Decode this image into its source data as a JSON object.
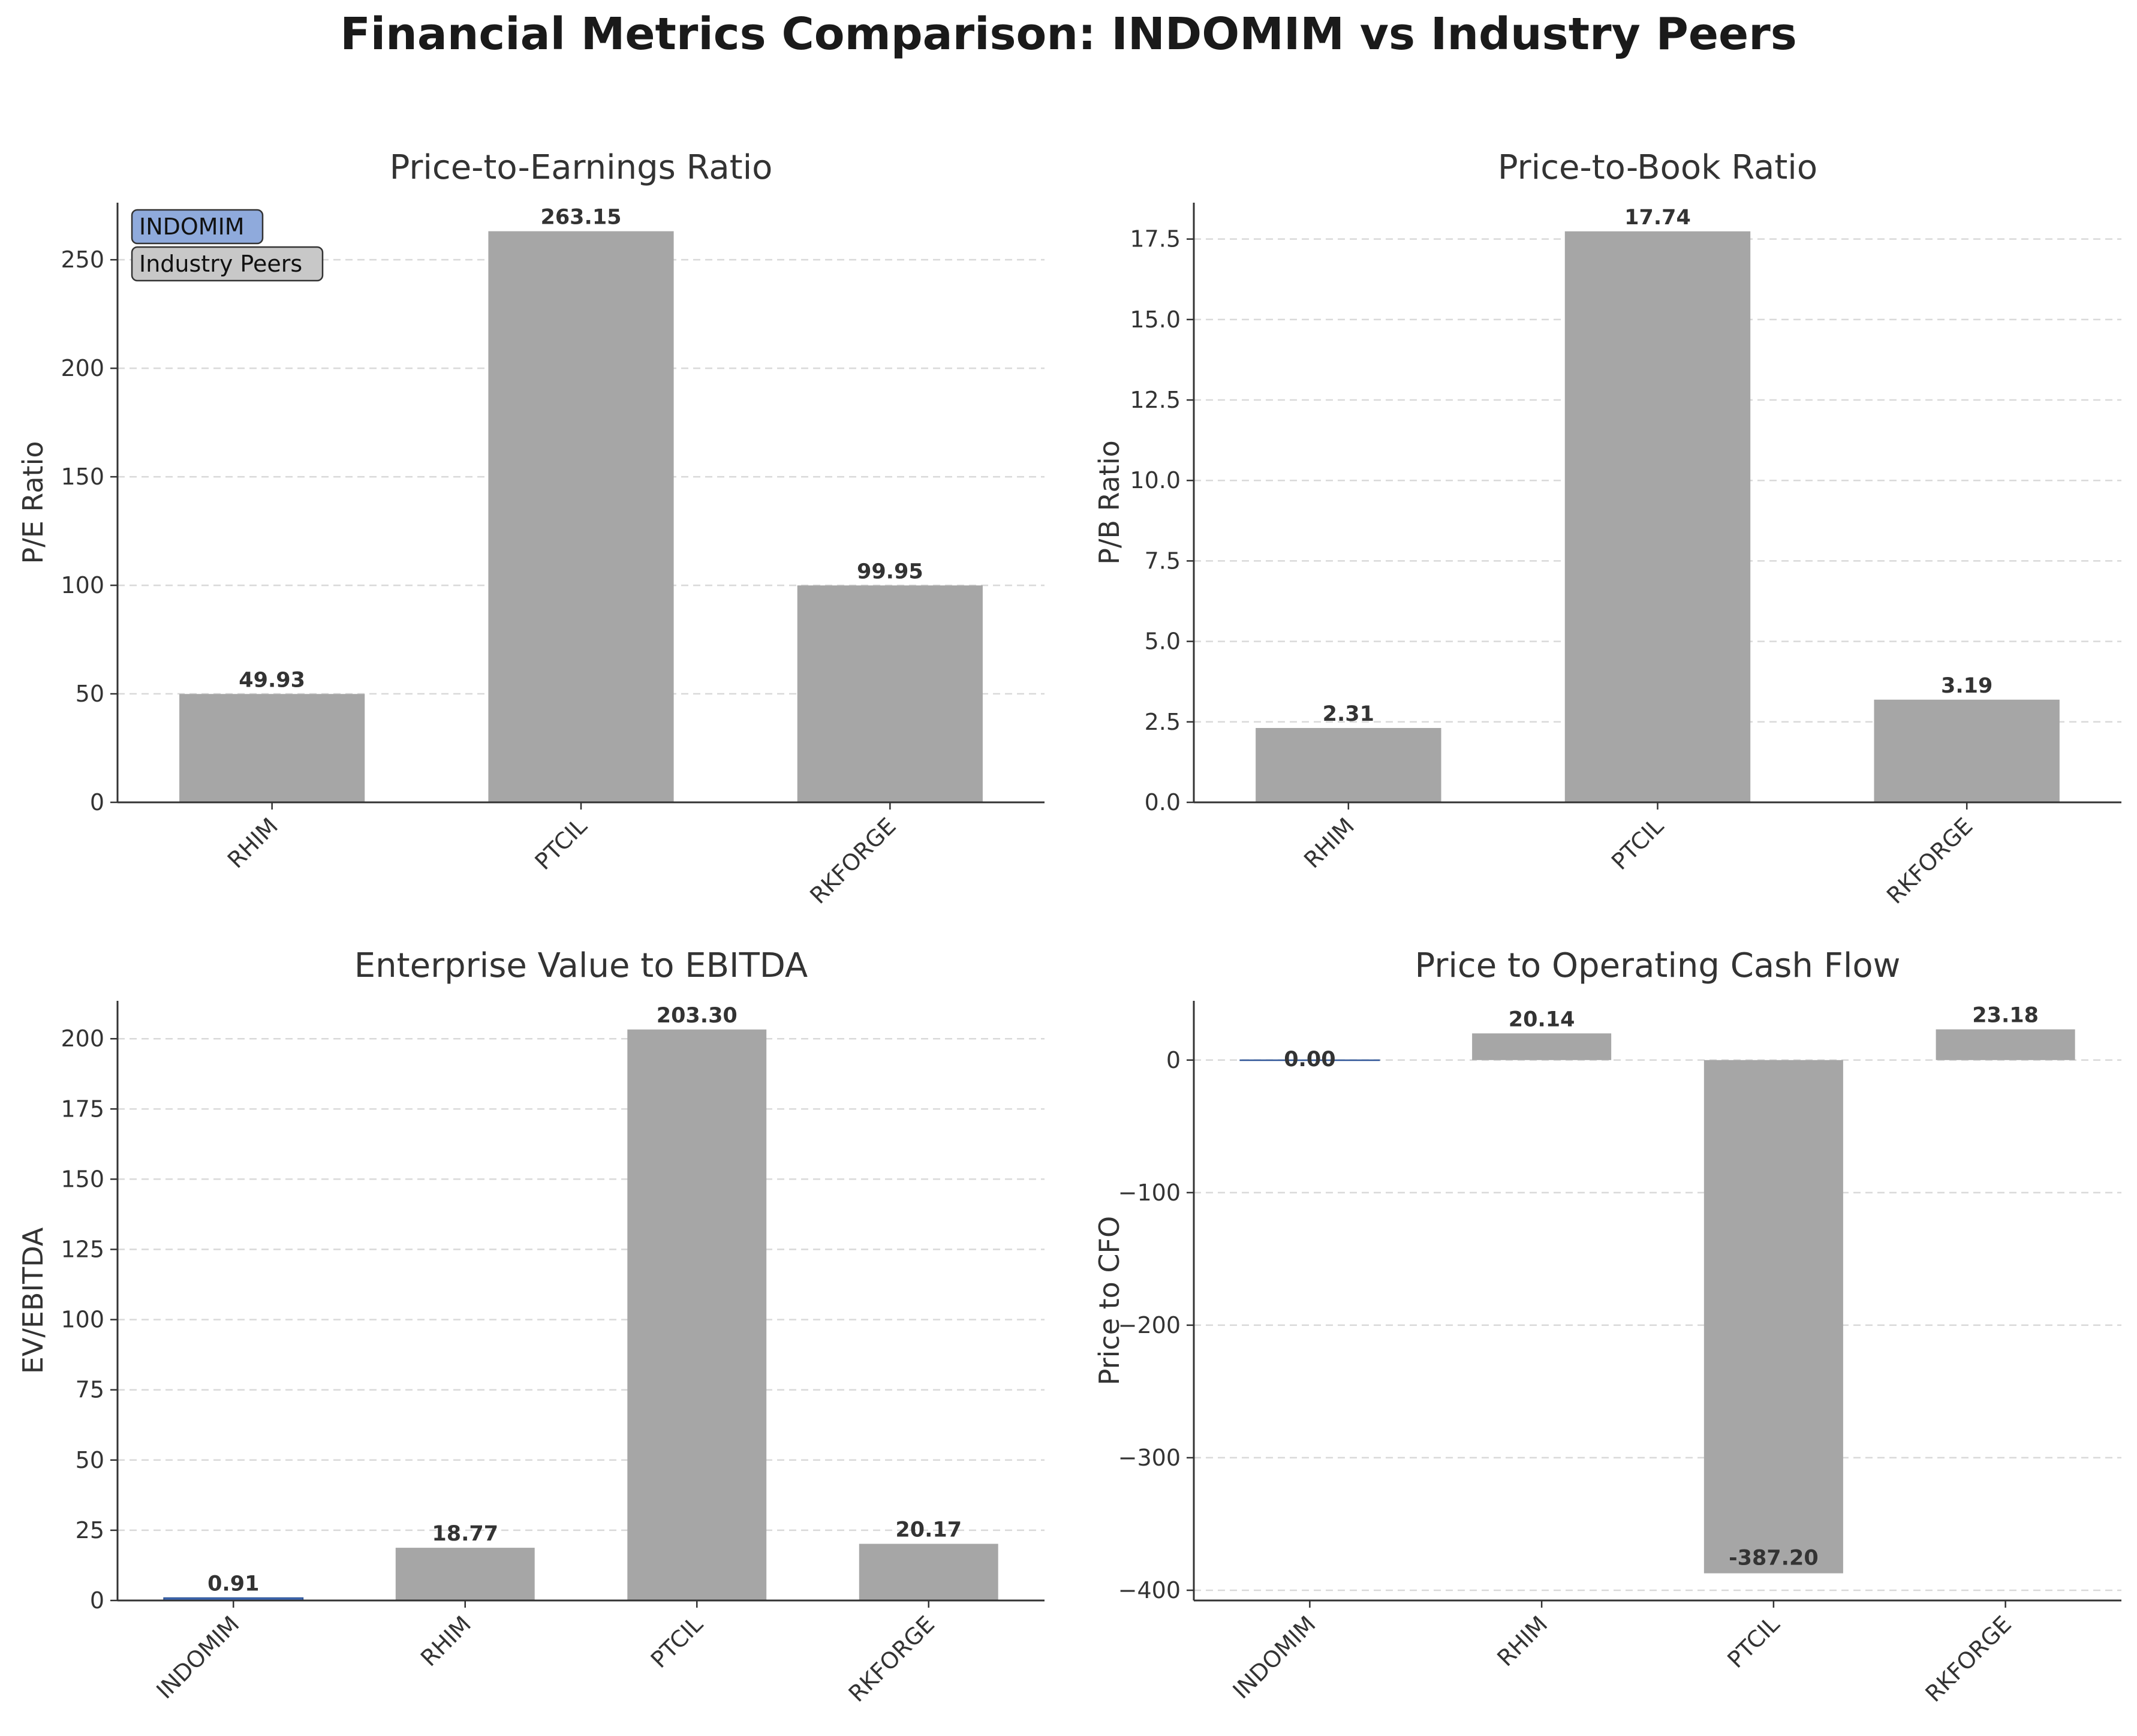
{
  "title": "Financial Metrics Comparison: INDOMIM vs Industry Peers",
  "colors": {
    "indomim": "#4472c4",
    "peers": "#a6a6a6",
    "legend_indomim_bg": "#8faadc",
    "legend_peers_bg": "#c8c8c8",
    "grid": "#d9d9d9",
    "axis": "#333333"
  },
  "legend": {
    "placement": "top-left",
    "entries": [
      "INDOMIM",
      "Industry Peers"
    ]
  },
  "chart_data": [
    {
      "type": "bar",
      "title": "Price-to-Earnings Ratio",
      "ylabel": "P/E Ratio",
      "xlabel": "",
      "categories": [
        "RHIM",
        "PTCIL",
        "RKFORGE"
      ],
      "values": [
        49.93,
        263.15,
        99.95
      ],
      "value_labels": [
        "49.93",
        "263.15",
        "99.95"
      ],
      "group": [
        "peer",
        "peer",
        "peer"
      ],
      "ylim": [
        0,
        276.3
      ],
      "yticks": [
        0,
        50,
        100,
        150,
        200,
        250
      ],
      "ytick_labels": [
        "0",
        "50",
        "100",
        "150",
        "200",
        "250"
      ],
      "grid": "y-dashed",
      "show_legend": true
    },
    {
      "type": "bar",
      "title": "Price-to-Book Ratio",
      "ylabel": "P/B Ratio",
      "xlabel": "",
      "categories": [
        "RHIM",
        "PTCIL",
        "RKFORGE"
      ],
      "values": [
        2.31,
        17.74,
        3.19
      ],
      "value_labels": [
        "2.31",
        "17.74",
        "3.19"
      ],
      "group": [
        "peer",
        "peer",
        "peer"
      ],
      "ylim": [
        0,
        18.63
      ],
      "yticks": [
        0,
        2.5,
        5,
        7.5,
        10,
        12.5,
        15,
        17.5
      ],
      "ytick_labels": [
        "0.0",
        "2.5",
        "5.0",
        "7.5",
        "10.0",
        "12.5",
        "15.0",
        "17.5"
      ],
      "grid": "y-dashed",
      "show_legend": false
    },
    {
      "type": "bar",
      "title": "Enterprise Value to EBITDA",
      "ylabel": "EV/EBITDA",
      "xlabel": "",
      "categories": [
        "INDOMIM",
        "RHIM",
        "PTCIL",
        "RKFORGE"
      ],
      "values": [
        0.91,
        18.77,
        203.3,
        20.17
      ],
      "value_labels": [
        "0.91",
        "18.77",
        "203.30",
        "20.17"
      ],
      "group": [
        "indomim",
        "peer",
        "peer",
        "peer"
      ],
      "ylim": [
        0,
        213.5
      ],
      "yticks": [
        0,
        25,
        50,
        75,
        100,
        125,
        150,
        175,
        200
      ],
      "ytick_labels": [
        "0",
        "25",
        "50",
        "75",
        "100",
        "125",
        "150",
        "175",
        "200"
      ],
      "grid": "y-dashed",
      "show_legend": false
    },
    {
      "type": "bar",
      "title": "Price to Operating Cash Flow",
      "ylabel": "Price to CFO",
      "xlabel": "",
      "categories": [
        "INDOMIM",
        "RHIM",
        "PTCIL",
        "RKFORGE"
      ],
      "values": [
        0.0,
        20.14,
        -387.2,
        23.18
      ],
      "value_labels": [
        "0.00",
        "20.14",
        "-387.20",
        "23.18"
      ],
      "group": [
        "indomim",
        "peer",
        "peer",
        "peer"
      ],
      "ylim": [
        -407.7,
        44.7
      ],
      "yticks": [
        -400,
        -300,
        -200,
        -100,
        0
      ],
      "ytick_labels": [
        "−400",
        "−300",
        "−200",
        "−100",
        "0"
      ],
      "grid": "y-dashed",
      "show_legend": false
    }
  ]
}
